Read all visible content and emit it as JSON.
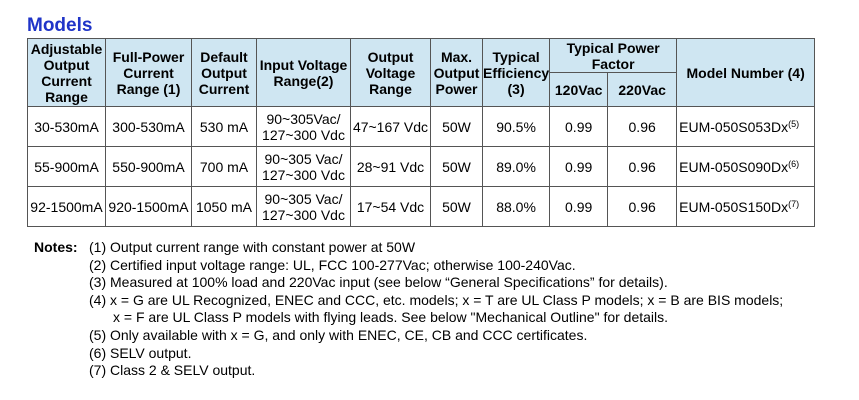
{
  "title": "Models",
  "headers": {
    "adj_range": "Adjustable Output Current Range",
    "full_power": "Full-Power Current Range (1)",
    "default_current": "Default Output Current",
    "input_voltage": "Input Voltage Range(2)",
    "output_voltage": "Output Voltage Range",
    "max_power": "Max. Output Power",
    "efficiency": "Typical Efficiency (3)",
    "power_factor": "Typical Power Factor",
    "pf_120": "120Vac",
    "pf_220": "220Vac",
    "model_number": "Model Number (4)"
  },
  "rows": [
    {
      "adj": "30-530mA",
      "full": "300-530mA",
      "def": "530 mA",
      "in1": "90~305Vac/",
      "in2": "127~300 Vdc",
      "out": "47~167 Vdc",
      "pow": "50W",
      "eff": "90.5%",
      "pf120": "0.99",
      "pf220": "0.96",
      "model": "EUM-050S053Dx",
      "sup": "(5)"
    },
    {
      "adj": "55-900mA",
      "full": "550-900mA",
      "def": "700 mA",
      "in1": "90~305 Vac/",
      "in2": "127~300 Vdc",
      "out": "28~91 Vdc",
      "pow": "50W",
      "eff": "89.0%",
      "pf120": "0.99",
      "pf220": "0.96",
      "model": "EUM-050S090Dx",
      "sup": "(6)"
    },
    {
      "adj": "92-1500mA",
      "full": "920-1500mA",
      "def": "1050 mA",
      "in1": "90~305 Vac/",
      "in2": "127~300 Vdc",
      "out": "17~54 Vdc",
      "pow": "50W",
      "eff": "88.0%",
      "pf120": "0.99",
      "pf220": "0.96",
      "model": "EUM-050S150Dx",
      "sup": "(7)"
    }
  ],
  "notes": {
    "label": "Notes:",
    "n1": "(1) Output current range with constant power at 50W",
    "n2": "(2) Certified input voltage range: UL, FCC 100-277Vac; otherwise 100-240Vac.",
    "n3": "(3) Measured at 100% load and 220Vac input (see below “General Specifications” for details).",
    "n4a": "(4) x = G are UL Recognized, ENEC and CCC, etc. models; x = T are UL Class P models; x = B are BIS models;",
    "n4b": "x = F are UL Class P models with flying leads. See below \"Mechanical Outline\" for details.",
    "n5": "(5) Only available with x = G, and only with ENEC, CE, CB and CCC certificates.",
    "n6": "(6) SELV output.",
    "n7": "(7) Class 2 & SELV output."
  }
}
